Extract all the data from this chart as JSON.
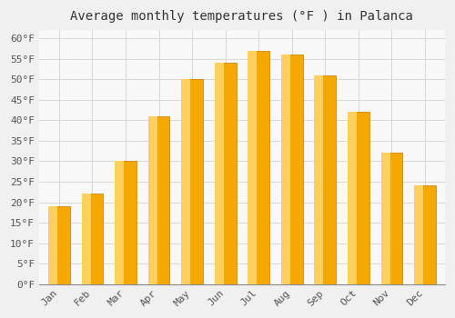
{
  "title": "Average monthly temperatures (°F ) in Palanca",
  "months": [
    "Jan",
    "Feb",
    "Mar",
    "Apr",
    "May",
    "Jun",
    "Jul",
    "Aug",
    "Sep",
    "Oct",
    "Nov",
    "Dec"
  ],
  "values": [
    19,
    22,
    30,
    41,
    50,
    54,
    57,
    56,
    51,
    42,
    32,
    24
  ],
  "bar_color_dark": "#F5A800",
  "bar_color_light": "#FFD060",
  "bar_edge_color": "#C87800",
  "ylim": [
    0,
    62
  ],
  "yticks": [
    0,
    5,
    10,
    15,
    20,
    25,
    30,
    35,
    40,
    45,
    50,
    55,
    60
  ],
  "ylabel_suffix": "°F",
  "background_color": "#f0f0f0",
  "plot_bg_color": "#f8f8f8",
  "grid_color": "#d8d8d8",
  "title_fontsize": 10,
  "tick_fontsize": 8,
  "font_family": "monospace"
}
